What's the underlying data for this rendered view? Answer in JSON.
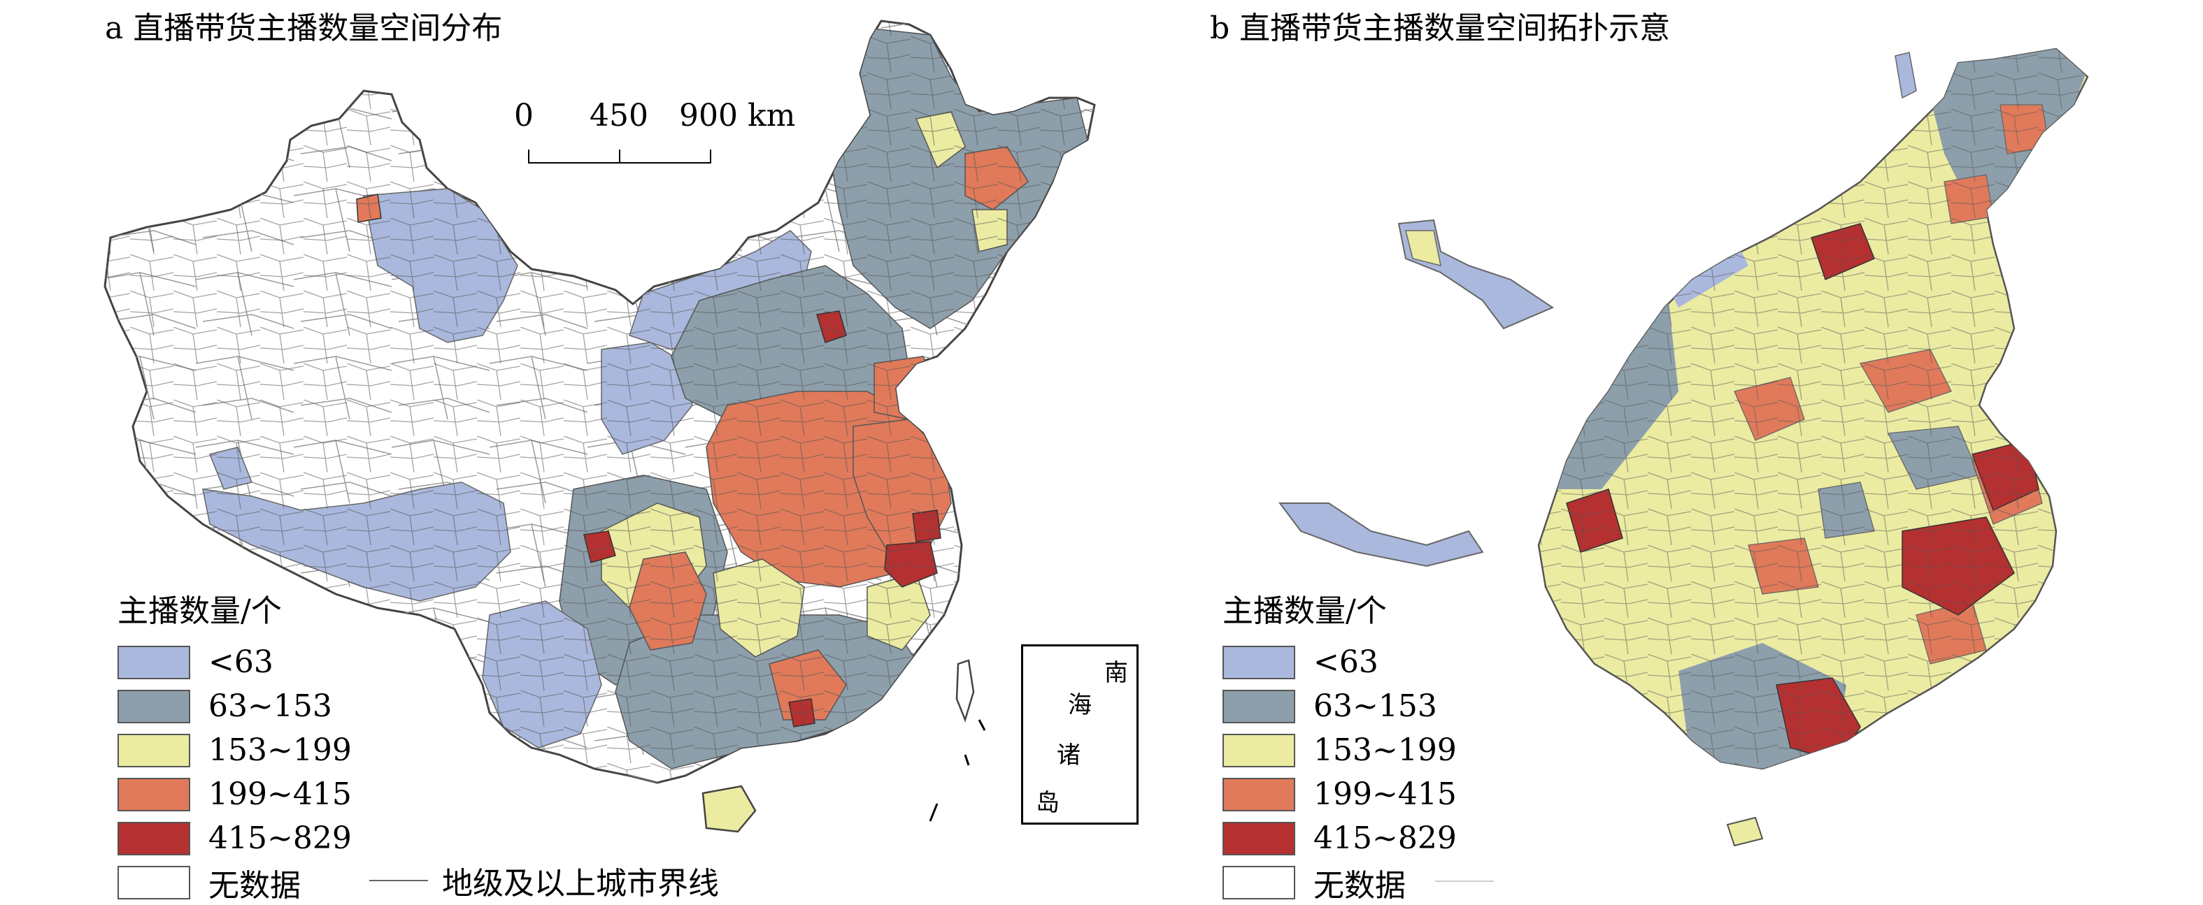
{
  "panels": {
    "a": {
      "title": "a 直播带货主播数量空间分布"
    },
    "b": {
      "title": "b 直播带货主播数量空间拓扑示意"
    }
  },
  "scale_bar": {
    "labels": [
      "0",
      "450",
      "900 km"
    ]
  },
  "inset": {
    "labels": [
      "南",
      "海",
      "诸",
      "岛"
    ]
  },
  "legend": {
    "title": "主播数量/个",
    "classes": [
      {
        "label": "<63",
        "color": "#aab8dd"
      },
      {
        "label": "63~153",
        "color": "#8d9fab"
      },
      {
        "label": "153~199",
        "color": "#ebeba2"
      },
      {
        "label": "199~415",
        "color": "#e07a5a"
      },
      {
        "label": "415~829",
        "color": "#b53030"
      },
      {
        "label": "无数据",
        "color": "#ffffff"
      }
    ],
    "boundary_label": "地级及以上城市界线"
  }
}
